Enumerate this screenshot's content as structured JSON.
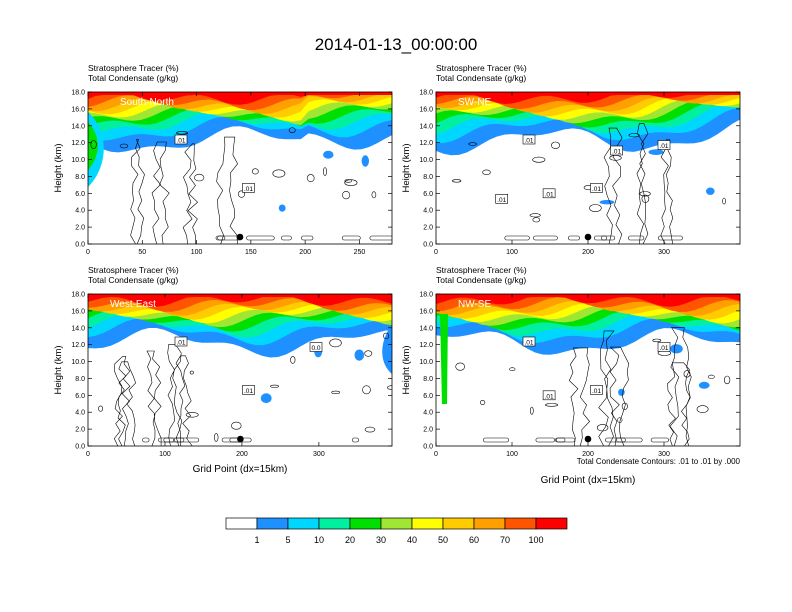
{
  "title": "2014-01-13_00:00:00",
  "footnote": "Total Condensate Contours: .01 to .01 by .000",
  "colorbar": {
    "colors": [
      "#ffffff",
      "#1e90ff",
      "#00d7ff",
      "#00f0a0",
      "#00e000",
      "#a0e632",
      "#ffff00",
      "#ffcc00",
      "#ffa000",
      "#ff5500",
      "#ff0000"
    ],
    "labels": [
      "1",
      "5",
      "10",
      "20",
      "30",
      "40",
      "50",
      "60",
      "70",
      "100"
    ]
  },
  "panels": [
    {
      "id": "sn",
      "header1": "Stratosphere Tracer   (%)",
      "header2": "Total Condensate   (g/kg)",
      "section_label": "South-North",
      "ylabel": "Height (km)",
      "xlabel": "",
      "xmax": 280,
      "xticks": [
        "0",
        "50",
        "100",
        "150",
        "200",
        "250"
      ],
      "yticks": [
        "0.0",
        "2.0",
        "4.0",
        "6.0",
        "8.0",
        "10.0",
        "12.0",
        "14.0",
        "16.0",
        "18.0"
      ],
      "contour_labels": [
        ".01",
        ".01"
      ],
      "marker_x": 140
    },
    {
      "id": "swne",
      "header1": "Stratosphere Tracer   (%)",
      "header2": "Total Condensate   (g/kg)",
      "section_label": "SW-NE",
      "ylabel": "Height (km)",
      "xlabel": "",
      "xmax": 400,
      "xticks": [
        "0",
        "100",
        "200",
        "300"
      ],
      "yticks": [
        "0.0",
        "2.0",
        "4.0",
        "6.0",
        "8.0",
        "10.0",
        "12.0",
        "14.0",
        "16.0",
        "18.0"
      ],
      "contour_labels": [
        ".01",
        ".01",
        ".01",
        ".01",
        ".01",
        ".01"
      ],
      "marker_x": 200
    },
    {
      "id": "we",
      "header1": "Stratosphere Tracer   (%)",
      "header2": "Total Condensate   (g/kg)",
      "section_label": "West-East",
      "ylabel": "Height (km)",
      "xlabel": "Grid Point (dx=15km)",
      "xmax": 395,
      "xticks": [
        "0",
        "100",
        "200",
        "300"
      ],
      "yticks": [
        "0.0",
        "2.0",
        "4.0",
        "6.0",
        "8.0",
        "10.0",
        "12.0",
        "14.0",
        "16.0",
        "18.0"
      ],
      "contour_labels": [
        ".01",
        ".01",
        "0.0"
      ],
      "marker_x": 198
    },
    {
      "id": "nwse",
      "header1": "Stratosphere Tracer   (%)",
      "header2": "Total Condensate   (g/kg)",
      "section_label": "NW-SE",
      "ylabel": "Height (km)",
      "xlabel": "Grid Point (dx=15km)",
      "xmax": 400,
      "xticks": [
        "0",
        "100",
        "200",
        "300"
      ],
      "yticks": [
        "0.0",
        "2.0",
        "4.0",
        "6.0",
        "8.0",
        "10.0",
        "12.0",
        "14.0",
        "16.0",
        "18.0"
      ],
      "contour_labels": [
        ".01",
        ".01",
        ".01",
        ".01"
      ],
      "marker_x": 200
    }
  ],
  "chart_data": {
    "type": "heatmap",
    "title": "2014-01-13_00:00:00",
    "fields": [
      "Stratosphere Tracer (%)",
      "Total Condensate (g/kg)"
    ],
    "ylim": [
      0,
      18
    ],
    "levels": [
      1,
      5,
      10,
      20,
      30,
      40,
      50,
      60,
      70,
      100
    ],
    "contour_levels": [
      0.01
    ],
    "cross_sections": [
      "South-North",
      "SW-NE",
      "West-East",
      "NW-SE"
    ],
    "xlims": [
      [
        0,
        280
      ],
      [
        0,
        400
      ],
      [
        0,
        395
      ],
      [
        0,
        400
      ]
    ]
  }
}
